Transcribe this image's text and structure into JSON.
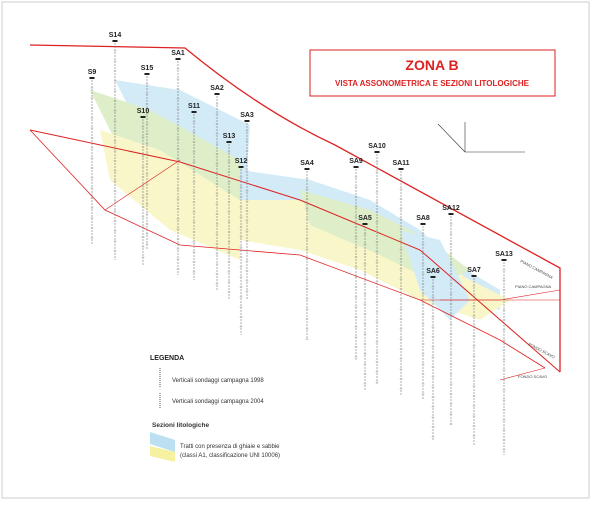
{
  "header": {
    "title": "ZONA B",
    "subtitle": "VISTA ASSONOMETRICA E SEZIONI LITOLOGICHE"
  },
  "boreholes": [
    "S14",
    "SA1",
    "S9",
    "S15",
    "S10",
    "S11",
    "SA2",
    "SA3",
    "S13",
    "S12",
    "SA4",
    "SA9",
    "SA10",
    "SA11",
    "SA5",
    "SA8",
    "SA12",
    "SA6",
    "SA7",
    "SA13"
  ],
  "profile_labels": [
    "PIANO CAMPAGNA",
    "PIANO CAMPAGNA",
    "FONDO SCAVO",
    "FONDO SCAVO"
  ],
  "legend": {
    "title": "LEGENDA",
    "items": [
      "Verticali sondaggi campagna 1998",
      "Verticali sondaggi campagna 2004"
    ],
    "section_title": "Sezioni litologiche",
    "section_items": [
      "Tratti con presenza di ghiaie e sabbie",
      "(classi A1, classificazione UNI 10006)"
    ]
  }
}
